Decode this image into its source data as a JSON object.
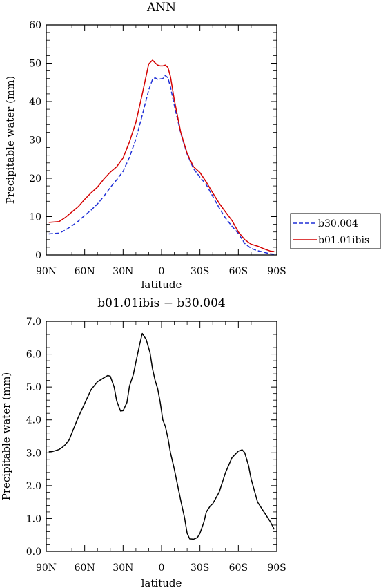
{
  "chart_data": [
    {
      "type": "line",
      "title": "ANN",
      "xlabel": "latitude",
      "ylabel": "Precipitable water (mm)",
      "xlim": [
        90,
        -90
      ],
      "ylim": [
        0,
        60
      ],
      "x_ticks": [
        90,
        60,
        30,
        0,
        -30,
        -60,
        -90
      ],
      "x_tick_labels": [
        "90N",
        "60N",
        "30N",
        "0",
        "30S",
        "60S",
        "90S"
      ],
      "y_ticks": [
        0,
        10,
        20,
        30,
        40,
        50,
        60
      ],
      "y_tick_labels": [
        "0",
        "10",
        "20",
        "30",
        "40",
        "50",
        "60"
      ],
      "grid": false,
      "legend": "right",
      "series": [
        {
          "name": "b30.004",
          "color": "#1f2fd6",
          "dash": "dashed",
          "x": [
            88,
            80,
            75,
            70,
            65,
            60,
            55,
            50,
            45,
            40,
            35,
            30,
            25,
            20,
            15,
            10,
            7,
            5,
            3,
            1,
            -1,
            -3,
            -5,
            -7,
            -10,
            -15,
            -20,
            -25,
            -30,
            -35,
            -40,
            -45,
            -50,
            -55,
            -60,
            -65,
            -70,
            -75,
            -80,
            -85,
            -88
          ],
          "y": [
            5.5,
            5.7,
            6.5,
            7.6,
            8.8,
            10.3,
            11.7,
            13.3,
            15.3,
            17.6,
            19.6,
            21.8,
            25.5,
            30.2,
            36.5,
            43.0,
            45.8,
            46.2,
            45.8,
            45.9,
            46.0,
            46.8,
            46.2,
            43.8,
            39.0,
            31.8,
            26.3,
            22.5,
            20.3,
            18.3,
            15.3,
            12.3,
            9.6,
            7.5,
            5.6,
            3.0,
            1.7,
            1.1,
            0.7,
            0.3,
            0.2
          ]
        },
        {
          "name": "b01.01ibis",
          "color": "#d40000",
          "dash": "solid",
          "x": [
            88,
            80,
            75,
            70,
            65,
            60,
            55,
            50,
            45,
            40,
            35,
            30,
            25,
            20,
            15,
            10,
            7,
            5,
            3,
            1,
            -1,
            -3,
            -5,
            -7,
            -10,
            -15,
            -20,
            -25,
            -30,
            -35,
            -40,
            -45,
            -50,
            -55,
            -60,
            -65,
            -70,
            -75,
            -80,
            -85,
            -88
          ],
          "y": [
            8.5,
            8.7,
            9.8,
            11.2,
            12.6,
            14.5,
            16.2,
            17.7,
            19.8,
            21.6,
            23.0,
            25.3,
            29.5,
            34.6,
            42.0,
            49.8,
            50.8,
            50.1,
            49.5,
            49.3,
            49.3,
            49.5,
            48.9,
            46.5,
            40.4,
            32.0,
            26.5,
            23.0,
            21.5,
            19.0,
            16.2,
            13.5,
            11.2,
            9.0,
            6.0,
            4.0,
            2.8,
            2.3,
            1.6,
            1.0,
            0.9
          ]
        }
      ]
    },
    {
      "type": "line",
      "title": "b01.01ibis − b30.004",
      "xlabel": "latitude",
      "ylabel": "Precipitable water (mm)",
      "xlim": [
        90,
        -90
      ],
      "ylim": [
        0,
        7
      ],
      "x_ticks": [
        90,
        60,
        30,
        0,
        -30,
        -60,
        -90
      ],
      "x_tick_labels": [
        "90N",
        "60N",
        "30N",
        "0",
        "30S",
        "60S",
        "90S"
      ],
      "y_ticks": [
        0,
        1,
        2,
        3,
        4,
        5,
        6,
        7
      ],
      "y_tick_labels": [
        "0.0",
        "1.0",
        "2.0",
        "3.0",
        "4.0",
        "5.0",
        "6.0",
        "7.0"
      ],
      "grid": false,
      "series": [
        {
          "color": "#000000",
          "dash": "solid",
          "x": [
            88,
            85,
            80,
            78,
            75,
            72,
            70,
            65,
            60,
            55,
            50,
            45,
            42,
            40,
            37,
            35,
            32,
            30,
            27,
            25,
            22,
            20,
            17,
            15,
            12,
            9,
            7,
            5,
            3,
            1,
            -1,
            -3,
            -5,
            -7,
            -10,
            -15,
            -18,
            -20,
            -22,
            -25,
            -28,
            -30,
            -33,
            -35,
            -38,
            -40,
            -45,
            -50,
            -55,
            -60,
            -63,
            -65,
            -68,
            -70,
            -75,
            -80,
            -85,
            -88
          ],
          "y": [
            3.03,
            3.04,
            3.1,
            3.15,
            3.25,
            3.4,
            3.6,
            4.08,
            4.5,
            4.92,
            5.16,
            5.28,
            5.35,
            5.33,
            5.0,
            4.58,
            4.27,
            4.28,
            4.53,
            5.03,
            5.38,
            5.76,
            6.31,
            6.63,
            6.45,
            6.05,
            5.55,
            5.2,
            4.95,
            4.53,
            4.0,
            3.8,
            3.45,
            3.0,
            2.5,
            1.55,
            1.02,
            0.55,
            0.38,
            0.37,
            0.42,
            0.55,
            0.88,
            1.2,
            1.38,
            1.45,
            1.8,
            2.4,
            2.85,
            3.05,
            3.09,
            3.0,
            2.6,
            2.2,
            1.5,
            1.2,
            0.9,
            0.67
          ]
        }
      ]
    }
  ]
}
